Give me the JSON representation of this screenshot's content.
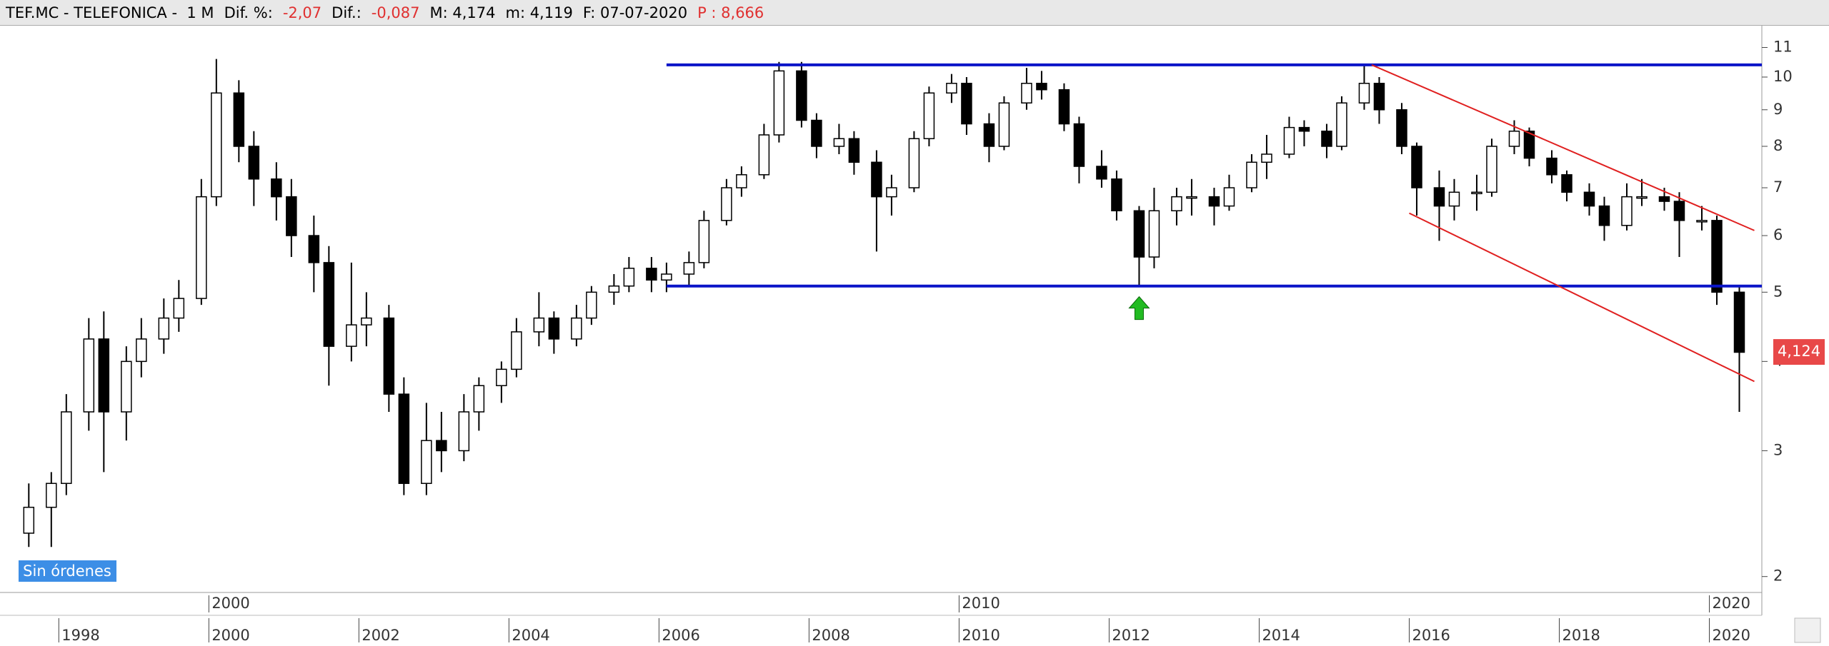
{
  "header": [
    {
      "text": "TEF.MC - TELEFONICA -  1 M",
      "color": "#000000"
    },
    {
      "text": "Dif. %:",
      "color": "#000000"
    },
    {
      "text": "-2,07",
      "color": "#e03030"
    },
    {
      "text": "Dif.:",
      "color": "#000000"
    },
    {
      "text": "-0,087",
      "color": "#e03030"
    },
    {
      "text": "M: 4,174",
      "color": "#000000"
    },
    {
      "text": "m: 4,119",
      "color": "#000000"
    },
    {
      "text": "F: 07-07-2020",
      "color": "#000000"
    },
    {
      "text": "P : 8,666",
      "color": "#e03030"
    }
  ],
  "badge": "Sin órdenes",
  "chart_data": {
    "type": "candlestick",
    "log_scale": true,
    "up_color": "#ffffff",
    "down_color": "#000000",
    "xlim": [
      1997.34,
      2020.7
    ],
    "ylim": [
      1.9,
      11.8
    ],
    "yticks": [
      2,
      3,
      4,
      5,
      6,
      7,
      8,
      9,
      10,
      11
    ],
    "xticks": [
      1998,
      2000,
      2002,
      2004,
      2006,
      2008,
      2010,
      2012,
      2014,
      2016,
      2018,
      2020
    ],
    "xticks_major": [
      2000,
      2010,
      2020
    ],
    "x": [
      1997.6,
      1997.9,
      1998.1,
      1998.4,
      1998.6,
      1998.9,
      1999.1,
      1999.4,
      1999.6,
      1999.9,
      2000.1,
      2000.4,
      2000.6,
      2000.9,
      2001.1,
      2001.4,
      2001.6,
      2001.9,
      2002.1,
      2002.4,
      2002.6,
      2002.9,
      2003.1,
      2003.4,
      2003.6,
      2003.9,
      2004.1,
      2004.4,
      2004.6,
      2004.9,
      2005.1,
      2005.4,
      2005.6,
      2005.9,
      2006.1,
      2006.4,
      2006.6,
      2006.9,
      2007.1,
      2007.4,
      2007.6,
      2007.9,
      2008.1,
      2008.4,
      2008.6,
      2008.9,
      2009.1,
      2009.4,
      2009.6,
      2009.9,
      2010.1,
      2010.4,
      2010.6,
      2010.9,
      2011.1,
      2011.4,
      2011.6,
      2011.9,
      2012.1,
      2012.4,
      2012.6,
      2012.9,
      2013.1,
      2013.4,
      2013.6,
      2013.9,
      2014.1,
      2014.4,
      2014.6,
      2014.9,
      2015.1,
      2015.4,
      2015.6,
      2015.9,
      2016.1,
      2016.4,
      2016.6,
      2016.9,
      2017.1,
      2017.4,
      2017.6,
      2017.9,
      2018.1,
      2018.4,
      2018.6,
      2018.9,
      2019.1,
      2019.4,
      2019.6,
      2019.9,
      2020.1,
      2020.4
    ],
    "ohlc": [
      [
        2.3,
        2.7,
        2.2,
        2.5
      ],
      [
        2.5,
        2.8,
        2.2,
        2.7
      ],
      [
        2.7,
        3.6,
        2.6,
        3.4
      ],
      [
        3.4,
        4.6,
        3.2,
        4.3
      ],
      [
        4.3,
        4.7,
        2.8,
        3.4
      ],
      [
        3.4,
        4.2,
        3.1,
        4.0
      ],
      [
        4.0,
        4.6,
        3.8,
        4.3
      ],
      [
        4.3,
        4.9,
        4.1,
        4.6
      ],
      [
        4.6,
        5.2,
        4.4,
        4.9
      ],
      [
        4.9,
        7.2,
        4.8,
        6.8
      ],
      [
        6.8,
        10.6,
        6.6,
        9.5
      ],
      [
        9.5,
        9.9,
        7.6,
        8.0
      ],
      [
        8.0,
        8.4,
        6.6,
        7.2
      ],
      [
        7.2,
        7.6,
        6.3,
        6.8
      ],
      [
        6.8,
        7.2,
        5.6,
        6.0
      ],
      [
        6.0,
        6.4,
        5.0,
        5.5
      ],
      [
        5.5,
        5.8,
        3.7,
        4.2
      ],
      [
        4.2,
        5.5,
        4.0,
        4.5
      ],
      [
        4.5,
        5.0,
        4.2,
        4.6
      ],
      [
        4.6,
        4.8,
        3.4,
        3.6
      ],
      [
        3.6,
        3.8,
        2.6,
        2.7
      ],
      [
        2.7,
        3.5,
        2.6,
        3.1
      ],
      [
        3.1,
        3.4,
        2.8,
        3.0
      ],
      [
        3.0,
        3.6,
        2.9,
        3.4
      ],
      [
        3.4,
        3.8,
        3.2,
        3.7
      ],
      [
        3.7,
        4.0,
        3.5,
        3.9
      ],
      [
        3.9,
        4.6,
        3.8,
        4.4
      ],
      [
        4.4,
        5.0,
        4.2,
        4.6
      ],
      [
        4.6,
        4.7,
        4.1,
        4.3
      ],
      [
        4.3,
        4.8,
        4.2,
        4.6
      ],
      [
        4.6,
        5.1,
        4.5,
        5.0
      ],
      [
        5.0,
        5.3,
        4.8,
        5.1
      ],
      [
        5.1,
        5.6,
        5.0,
        5.4
      ],
      [
        5.4,
        5.6,
        5.0,
        5.2
      ],
      [
        5.2,
        5.5,
        5.0,
        5.3
      ],
      [
        5.3,
        5.7,
        5.1,
        5.5
      ],
      [
        5.5,
        6.5,
        5.4,
        6.3
      ],
      [
        6.3,
        7.2,
        6.2,
        7.0
      ],
      [
        7.0,
        7.5,
        6.8,
        7.3
      ],
      [
        7.3,
        8.6,
        7.2,
        8.3
      ],
      [
        8.3,
        10.5,
        8.1,
        10.2
      ],
      [
        10.2,
        10.5,
        8.5,
        8.7
      ],
      [
        8.7,
        8.9,
        7.7,
        8.0
      ],
      [
        8.0,
        8.6,
        7.8,
        8.2
      ],
      [
        8.2,
        8.4,
        7.3,
        7.6
      ],
      [
        7.6,
        7.9,
        5.7,
        6.8
      ],
      [
        6.8,
        7.3,
        6.4,
        7.0
      ],
      [
        7.0,
        8.4,
        6.9,
        8.2
      ],
      [
        8.2,
        9.7,
        8.0,
        9.5
      ],
      [
        9.5,
        10.1,
        9.2,
        9.8
      ],
      [
        9.8,
        10.0,
        8.3,
        8.6
      ],
      [
        8.6,
        8.9,
        7.6,
        8.0
      ],
      [
        8.0,
        9.4,
        7.9,
        9.2
      ],
      [
        9.2,
        10.3,
        9.0,
        9.8
      ],
      [
        9.8,
        10.2,
        9.3,
        9.6
      ],
      [
        9.6,
        9.8,
        8.4,
        8.6
      ],
      [
        8.6,
        8.8,
        7.1,
        7.5
      ],
      [
        7.5,
        7.9,
        7.0,
        7.2
      ],
      [
        7.2,
        7.4,
        6.3,
        6.5
      ],
      [
        6.5,
        6.6,
        5.1,
        5.6
      ],
      [
        5.6,
        7.0,
        5.4,
        6.5
      ],
      [
        6.5,
        7.0,
        6.2,
        6.8
      ],
      [
        6.8,
        7.2,
        6.4,
        6.8
      ],
      [
        6.8,
        7.0,
        6.2,
        6.6
      ],
      [
        6.6,
        7.3,
        6.5,
        7.0
      ],
      [
        7.0,
        7.8,
        6.9,
        7.6
      ],
      [
        7.6,
        8.3,
        7.2,
        7.8
      ],
      [
        7.8,
        8.8,
        7.7,
        8.5
      ],
      [
        8.5,
        8.7,
        8.0,
        8.4
      ],
      [
        8.4,
        8.6,
        7.7,
        8.0
      ],
      [
        8.0,
        9.4,
        7.9,
        9.2
      ],
      [
        9.2,
        10.4,
        9.0,
        9.8
      ],
      [
        9.8,
        10.0,
        8.6,
        9.0
      ],
      [
        9.0,
        9.2,
        7.8,
        8.0
      ],
      [
        8.0,
        8.1,
        6.4,
        7.0
      ],
      [
        7.0,
        7.4,
        5.9,
        6.6
      ],
      [
        6.6,
        7.2,
        6.3,
        6.9
      ],
      [
        6.9,
        7.3,
        6.5,
        6.9
      ],
      [
        6.9,
        8.2,
        6.8,
        8.0
      ],
      [
        8.0,
        8.7,
        7.8,
        8.4
      ],
      [
        8.4,
        8.5,
        7.5,
        7.7
      ],
      [
        7.7,
        7.9,
        7.1,
        7.3
      ],
      [
        7.3,
        7.4,
        6.7,
        6.9
      ],
      [
        6.9,
        7.1,
        6.4,
        6.6
      ],
      [
        6.6,
        6.8,
        5.9,
        6.2
      ],
      [
        6.2,
        7.1,
        6.1,
        6.8
      ],
      [
        6.8,
        7.2,
        6.6,
        6.8
      ],
      [
        6.8,
        7.0,
        6.5,
        6.7
      ],
      [
        6.7,
        6.9,
        5.6,
        6.3
      ],
      [
        6.3,
        6.6,
        6.1,
        6.3
      ],
      [
        6.3,
        6.4,
        4.8,
        5.0
      ],
      [
        5.0,
        5.1,
        3.4,
        4.12
      ]
    ],
    "lines": [
      {
        "color": "#0a14c8",
        "points": [
          [
            2006.1,
            10.4
          ],
          [
            2020.7,
            10.4
          ]
        ]
      },
      {
        "color": "#0a14c8",
        "points": [
          [
            2006.1,
            5.1
          ],
          [
            2020.7,
            5.1
          ]
        ]
      },
      {
        "color": "#e02020",
        "points": [
          [
            2015.5,
            10.4
          ],
          [
            2020.6,
            6.1
          ]
        ]
      },
      {
        "color": "#e02020",
        "points": [
          [
            2016.0,
            6.45
          ],
          [
            2020.6,
            3.75
          ]
        ]
      }
    ],
    "signals": [
      {
        "x": 2012.4,
        "y": 4.75,
        "color": "#22bb22"
      }
    ],
    "last_price": {
      "value": 4.124,
      "label": "4,124",
      "color": "#e84848"
    }
  }
}
